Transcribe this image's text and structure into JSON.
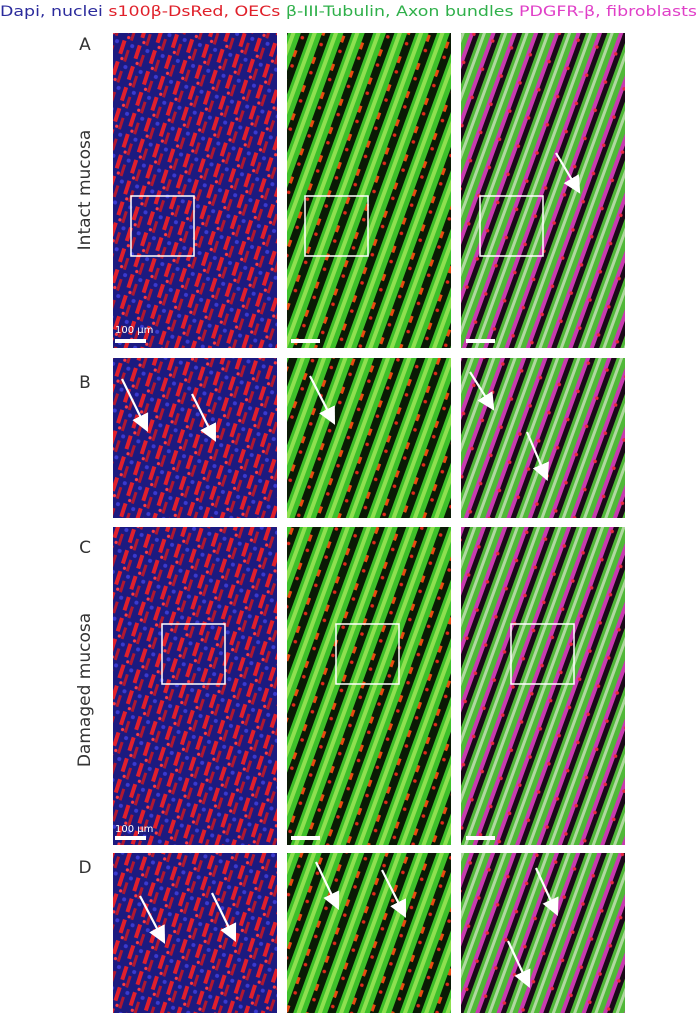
{
  "header": {
    "segments": [
      "Dapi, nuclei",
      "s100β-DsRed, OECs",
      "β-III-Tubulin, Axon bundles",
      "PDGFR-β, fibroblasts"
    ]
  },
  "panels": {
    "labels": [
      "A",
      "B",
      "C",
      "D"
    ]
  },
  "row_labels": [
    "Intact mucosa",
    "Damaged mucosa"
  ],
  "scale_labels": [
    "100 µm",
    "100 µm"
  ]
}
